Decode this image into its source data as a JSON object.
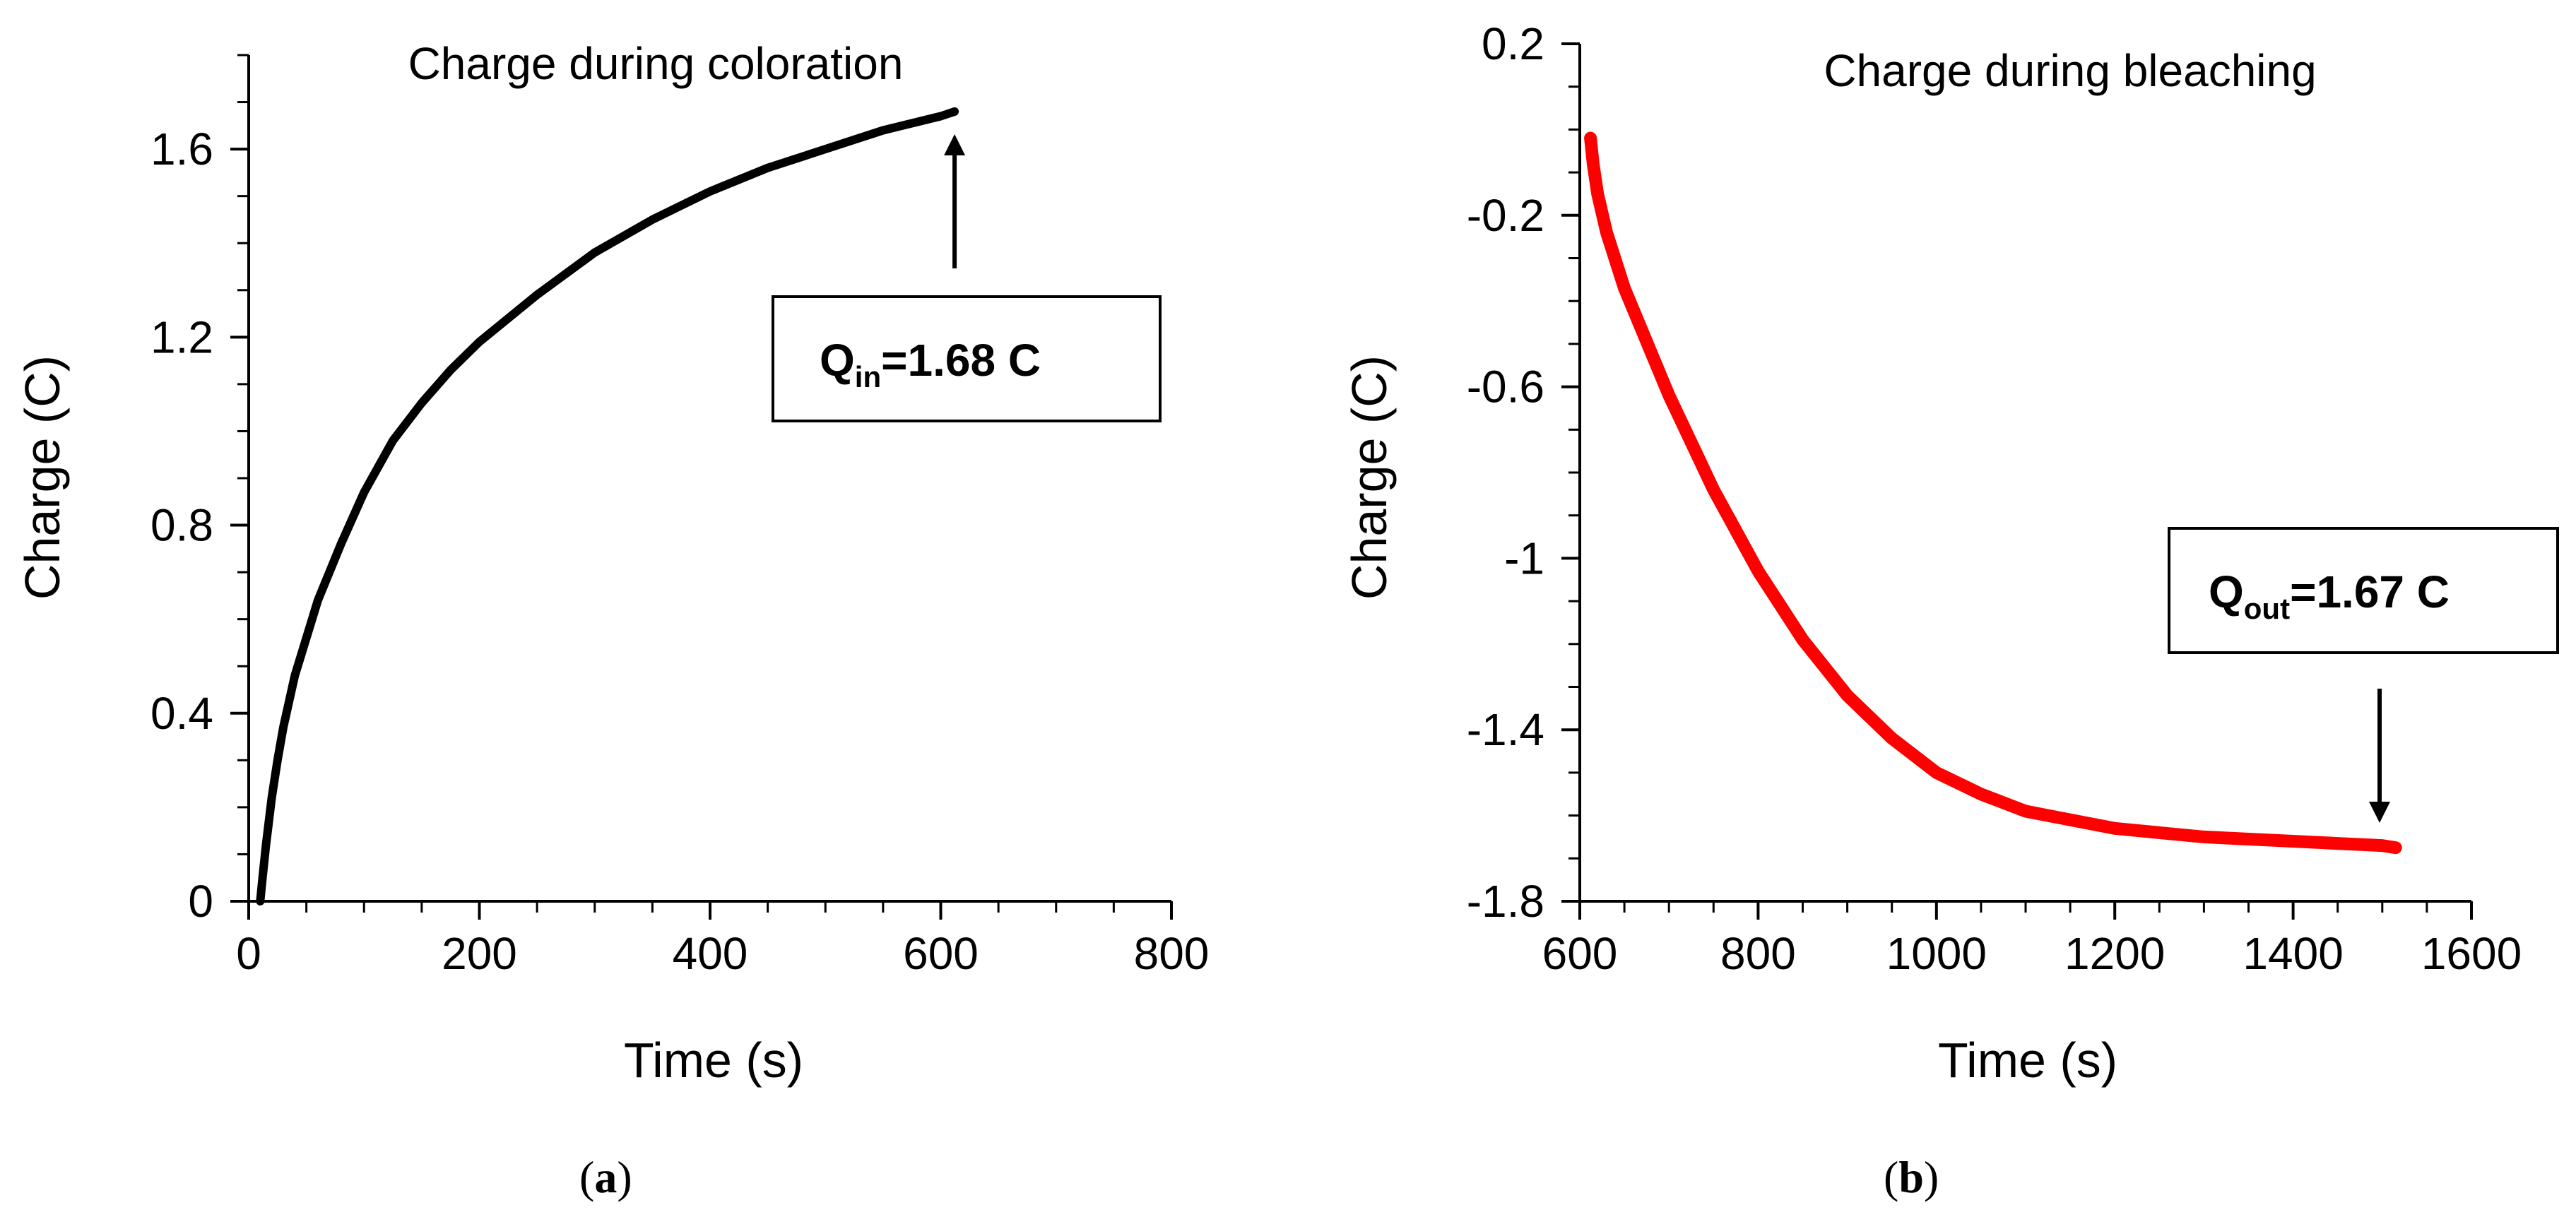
{
  "figure": {
    "panels": [
      {
        "label_open": "(",
        "label_letter": "a",
        "label_close": ")"
      },
      {
        "label_open": "(",
        "label_letter": "b",
        "label_close": ")"
      }
    ]
  },
  "colors": {
    "coloration": "#000000",
    "bleaching": "#ff0000",
    "axis": "#000000"
  },
  "chart_data": [
    {
      "type": "line",
      "title": "Charge during coloration",
      "xlabel": "Time (s)",
      "ylabel": "Charge (C)",
      "xlim": [
        0,
        800
      ],
      "ylim": [
        0,
        1.8
      ],
      "xticks": [
        0,
        200,
        400,
        600,
        800
      ],
      "yticks": [
        0,
        0.4,
        0.8,
        1.2,
        1.6
      ],
      "xtick_labels": [
        "0",
        "200",
        "400",
        "600",
        "800"
      ],
      "ytick_labels": [
        "0",
        "0.4",
        "0.8",
        "1.2",
        "1.6"
      ],
      "x_minor_step": 50,
      "y_minor_step": 0.1,
      "series": [
        {
          "name": "coloration",
          "color": "#000000",
          "x": [
            10,
            12,
            15,
            20,
            25,
            30,
            40,
            50,
            60,
            80,
            100,
            125,
            150,
            175,
            200,
            250,
            300,
            350,
            400,
            450,
            500,
            550,
            600,
            612
          ],
          "y": [
            0.0,
            0.05,
            0.12,
            0.22,
            0.3,
            0.37,
            0.48,
            0.56,
            0.64,
            0.76,
            0.87,
            0.98,
            1.06,
            1.13,
            1.19,
            1.29,
            1.38,
            1.45,
            1.51,
            1.56,
            1.6,
            1.64,
            1.67,
            1.68
          ]
        }
      ],
      "annotation": {
        "text_main": "Q",
        "text_sub": "in",
        "text_rest": "=1.68 C",
        "arrow_x": 612,
        "arrow_direction": "up"
      }
    },
    {
      "type": "line",
      "title": "Charge during bleaching",
      "xlabel": "Time (s)",
      "ylabel": "Charge (C)",
      "xlim": [
        600,
        1600
      ],
      "ylim": [
        -1.8,
        0.2
      ],
      "xticks": [
        600,
        800,
        1000,
        1200,
        1400,
        1600
      ],
      "yticks": [
        0.2,
        -0.2,
        -0.6,
        -1.0,
        -1.4,
        -1.8
      ],
      "xtick_labels": [
        "600",
        "800",
        "1000",
        "1200",
        "1400",
        "1600"
      ],
      "ytick_labels": [
        "0.2",
        "-0.2",
        "-0.6",
        "-1",
        "-1.4",
        "-1.8"
      ],
      "x_minor_step": 50,
      "y_minor_step": 0.1,
      "series": [
        {
          "name": "bleaching",
          "color": "#ff0000",
          "x": [
            612,
            615,
            620,
            630,
            650,
            700,
            750,
            800,
            850,
            900,
            950,
            1000,
            1050,
            1100,
            1150,
            1200,
            1250,
            1300,
            1350,
            1400,
            1450,
            1500,
            1515
          ],
          "y": [
            -0.02,
            -0.08,
            -0.15,
            -0.24,
            -0.37,
            -0.62,
            -0.84,
            -1.03,
            -1.19,
            -1.32,
            -1.42,
            -1.5,
            -1.55,
            -1.59,
            -1.61,
            -1.63,
            -1.64,
            -1.65,
            -1.655,
            -1.66,
            -1.665,
            -1.67,
            -1.675
          ]
        }
      ],
      "annotation": {
        "text_main": "Q",
        "text_sub": "out",
        "text_rest": "=1.67 C",
        "arrow_x": 1497,
        "arrow_direction": "down"
      }
    }
  ]
}
